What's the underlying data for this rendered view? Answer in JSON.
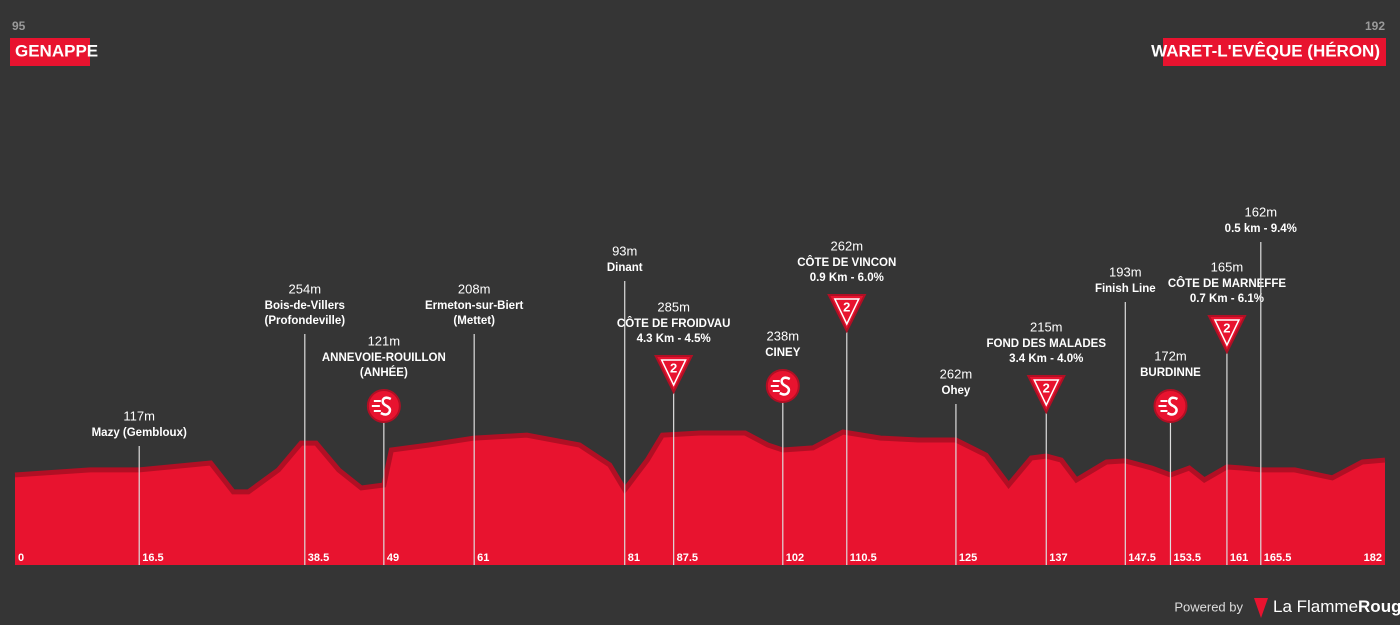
{
  "chart_data": {
    "type": "area",
    "start": {
      "elevation_label": "95",
      "name": "GENAPPE"
    },
    "finish": {
      "elevation_label": "192",
      "name": "WARET-L'EVÊQUE (HÉRON)"
    },
    "x": [
      0,
      10,
      16.5,
      26,
      29,
      31,
      35,
      38,
      40,
      43,
      46,
      49,
      50,
      55,
      61,
      68,
      75,
      79,
      81,
      84,
      86,
      91,
      97,
      100,
      102,
      106,
      110,
      115,
      120,
      125,
      129,
      132,
      135,
      137,
      139,
      141,
      145,
      147.5,
      151,
      153.5,
      156,
      158,
      161,
      163,
      165.5,
      170,
      175,
      179,
      182
    ],
    "values": [
      95,
      119,
      119,
      152,
      14,
      14,
      119,
      247,
      247,
      119,
      33,
      47,
      214,
      238,
      271,
      285,
      238,
      143,
      24,
      166,
      285,
      295,
      295,
      238,
      214,
      224,
      300,
      271,
      262,
      262,
      190,
      47,
      176,
      185,
      166,
      71,
      157,
      162,
      128,
      95,
      128,
      71,
      133,
      128,
      119,
      119,
      81,
      157,
      166
    ],
    "color": "#e8132f",
    "xlim": [
      0,
      182
    ],
    "ylim": [
      -335,
      300
    ],
    "xticks": [
      0,
      16.5,
      38.5,
      49,
      61,
      81,
      87.5,
      102,
      110.5,
      125,
      137,
      147.5,
      153.5,
      161,
      165.5,
      182
    ],
    "waypoints": [
      {
        "km": 16.5,
        "elevation_label": "117m",
        "lines": [
          "Mazy (Gembloux)"
        ]
      },
      {
        "km": 38.5,
        "elevation_label": "254m",
        "lines": [
          "Bois-de-Villers",
          "(Profondeville)"
        ]
      },
      {
        "km": 49,
        "elevation_label": "121m",
        "lines": [
          "ANNEVOIE-ROUILLON",
          "(ANHÉE)"
        ],
        "icon": "sprint"
      },
      {
        "km": 61,
        "elevation_label": "208m",
        "lines": [
          "Ermeton-sur-Biert",
          "(Mettet)"
        ]
      },
      {
        "km": 81,
        "elevation_label": "93m",
        "lines": [
          "Dinant"
        ]
      },
      {
        "km": 87.5,
        "elevation_label": "285m",
        "lines": [
          "CÔTE DE FROIDVAU",
          "4.3 Km - 4.5%"
        ],
        "icon": "climb",
        "category": "2"
      },
      {
        "km": 102,
        "elevation_label": "238m",
        "lines": [
          "CINEY"
        ],
        "icon": "sprint"
      },
      {
        "km": 110.5,
        "elevation_label": "262m",
        "lines": [
          "CÔTE DE VINCON",
          "0.9 Km - 6.0%"
        ],
        "icon": "climb",
        "category": "2"
      },
      {
        "km": 125,
        "elevation_label": "262m",
        "lines": [
          "Ohey"
        ]
      },
      {
        "km": 137,
        "elevation_label": "215m",
        "lines": [
          "FOND DES MALADES",
          "3.4 Km - 4.0%"
        ],
        "icon": "climb",
        "category": "2"
      },
      {
        "km": 147.5,
        "elevation_label": "193m",
        "lines": [
          "Finish Line"
        ]
      },
      {
        "km": 153.5,
        "elevation_label": "172m",
        "lines": [
          "BURDINNE"
        ],
        "icon": "sprint"
      },
      {
        "km": 161,
        "elevation_label": "165m",
        "lines": [
          "CÔTE DE MARNEFFE",
          "0.7 Km - 6.1%"
        ],
        "icon": "climb",
        "category": "2"
      },
      {
        "km": 165.5,
        "elevation_label": "162m",
        "lines": [
          "0.5 km - 9.4%"
        ]
      }
    ],
    "footer": {
      "powered": "Powered by",
      "brand": "La Flamme",
      "brand_bold": "Rouge"
    }
  }
}
